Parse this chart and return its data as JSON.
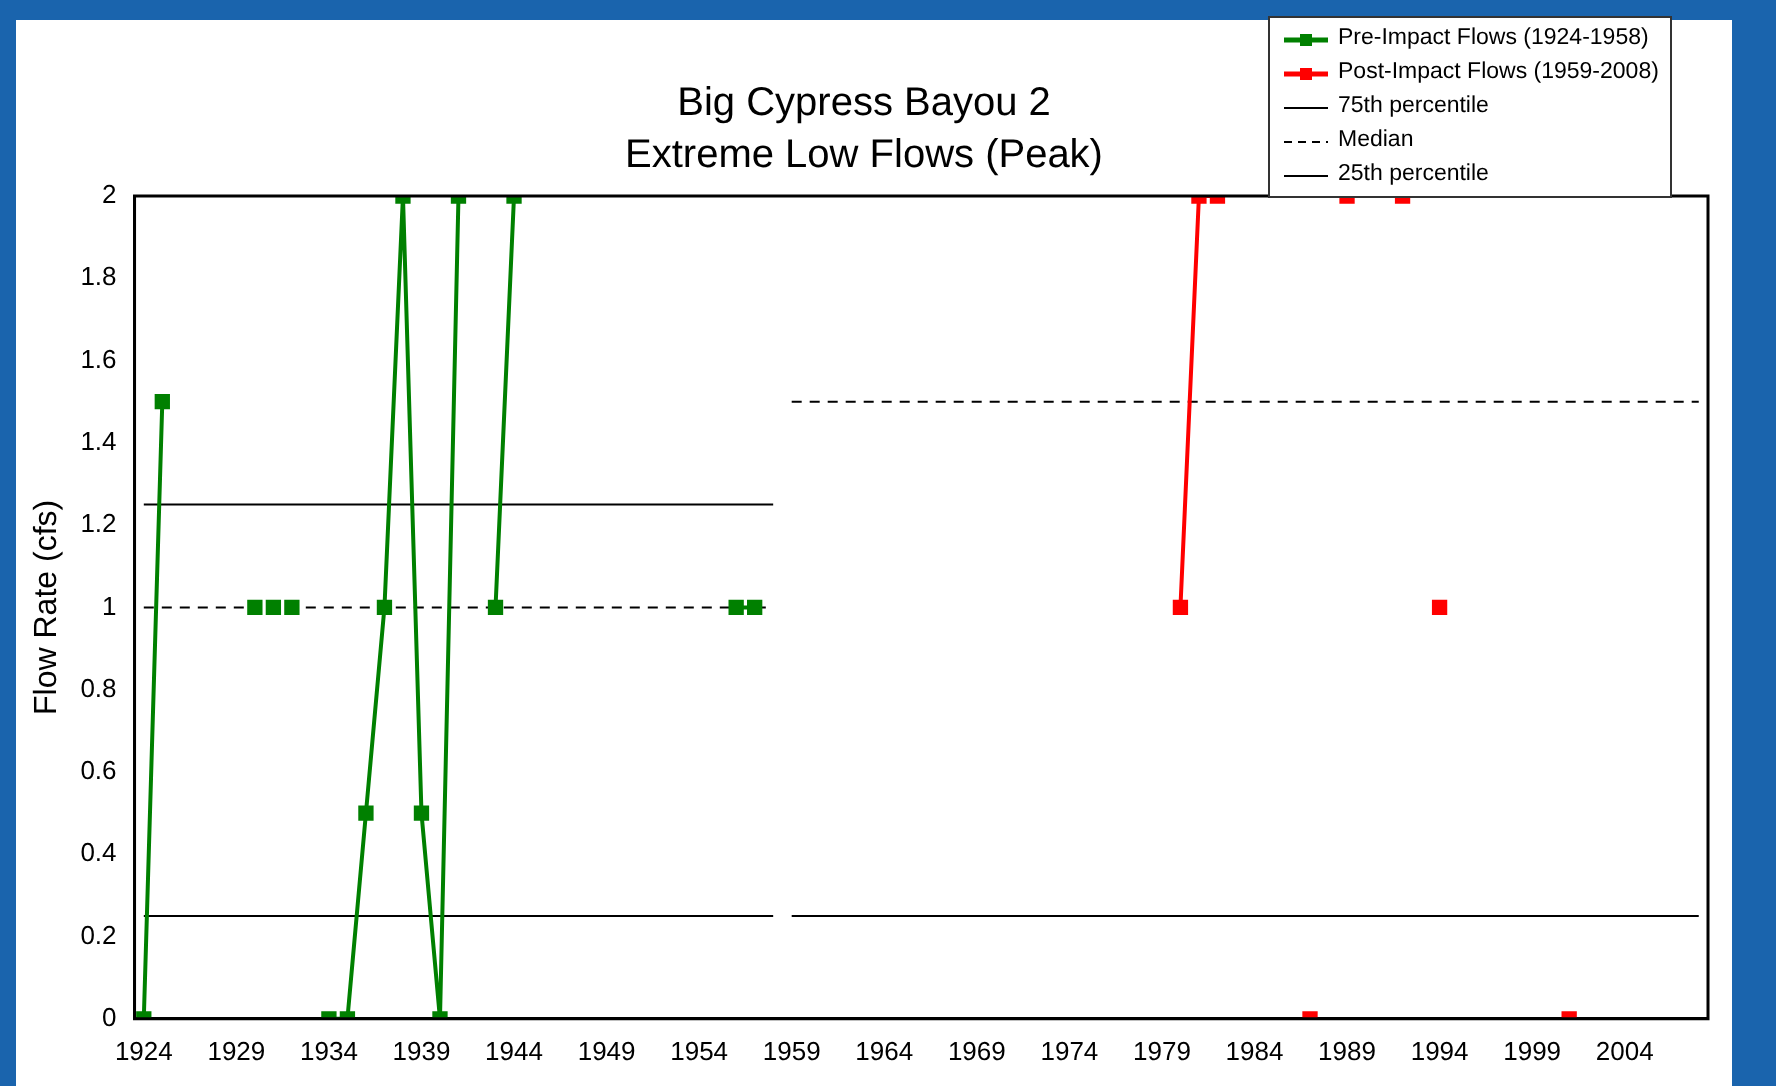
{
  "chart_data": {
    "type": "line",
    "title": "Big Cypress Bayou 2",
    "subtitle": "Extreme Low Flows (Peak)",
    "ylabel": "Flow Rate (cfs)",
    "xlim": [
      1923.5,
      2008.5
    ],
    "xticks": [
      1924,
      1929,
      1934,
      1939,
      1944,
      1949,
      1954,
      1959,
      1964,
      1969,
      1974,
      1979,
      1984,
      1989,
      1994,
      1999,
      2004
    ],
    "ylim": [
      0,
      2
    ],
    "yticks": [
      0,
      0.2,
      0.4,
      0.6,
      0.8,
      1,
      1.2,
      1.4,
      1.6,
      1.8,
      2
    ],
    "grid": false,
    "legend": "top right",
    "series": [
      {
        "name": "Pre-Impact Flows (1924-1958)",
        "color": "#008000",
        "marker": "square",
        "line_style": "solid",
        "x": [
          1924,
          1925,
          1926,
          1930,
          1930.5,
          1931,
          1931.5,
          1932,
          1933,
          1934,
          1935,
          1936,
          1937,
          1938,
          1939,
          1940,
          1941,
          1942,
          1943,
          1944,
          1945,
          1956,
          1957
        ],
        "values": [
          0,
          1.5,
          null,
          1,
          null,
          1,
          null,
          1,
          null,
          0,
          0,
          0.5,
          1,
          2,
          0.5,
          0,
          2,
          null,
          1,
          2,
          null,
          1,
          1
        ]
      },
      {
        "name": "Post-Impact Flows (1959-2008)",
        "color": "#ff0000",
        "marker": "square",
        "line_style": "solid",
        "x": [
          1980,
          1981,
          1982,
          1983,
          1987,
          1988,
          1989,
          1990,
          1992,
          1993,
          1994,
          1995,
          2001
        ],
        "values": [
          1,
          2,
          2,
          null,
          0,
          null,
          2,
          null,
          2,
          null,
          1,
          null,
          0
        ]
      },
      {
        "name": "75th percentile",
        "color": "#000000",
        "marker": "none",
        "line_style": "solid",
        "x": [
          1924,
          1958,
          1958.5,
          1959,
          2008
        ],
        "values": [
          1.25,
          1.25,
          null,
          2,
          2
        ]
      },
      {
        "name": "Median",
        "color": "#000000",
        "marker": "none",
        "line_style": "dashed",
        "x": [
          1924,
          1958,
          1958.5,
          1959,
          2008
        ],
        "values": [
          1,
          1,
          null,
          1.5,
          1.5
        ]
      },
      {
        "name": "25th percentile",
        "color": "#000000",
        "marker": "none",
        "line_style": "solid",
        "x": [
          1924,
          1958,
          1958.5,
          1959,
          2008
        ],
        "values": [
          0.25,
          0.25,
          null,
          0.25,
          0.25
        ]
      }
    ]
  }
}
